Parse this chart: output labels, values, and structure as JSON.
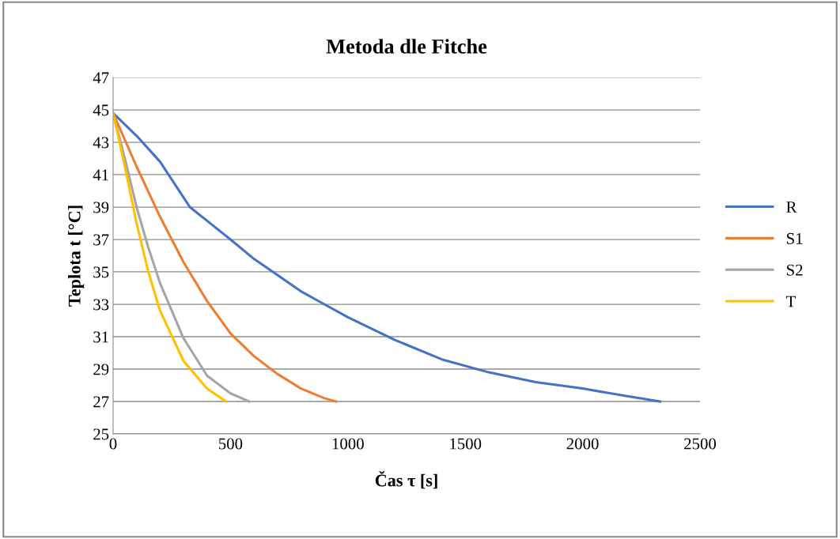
{
  "chart_data": {
    "type": "line",
    "title": "Metoda dle Fitche",
    "xlabel": "Čas τ [s]",
    "ylabel": "Teplota t [°C]",
    "xlim": [
      0,
      2500
    ],
    "xticks": [
      0,
      500,
      1000,
      1500,
      2000,
      2500
    ],
    "ylim": [
      25,
      47
    ],
    "yticks": [
      25,
      27,
      29,
      31,
      33,
      35,
      37,
      39,
      41,
      43,
      45,
      47
    ],
    "grid": "y",
    "legend": "right",
    "marker": "none",
    "line_style": "solid",
    "series": [
      {
        "name": "R",
        "color": "#4472c4",
        "x": [
          0,
          100,
          200,
          327,
          500,
          600,
          700,
          800,
          900,
          1000,
          1200,
          1400,
          1600,
          1800,
          2000,
          2200,
          2330
        ],
        "values": [
          44.8,
          43.4,
          41.8,
          39.0,
          37.0,
          35.8,
          34.8,
          33.8,
          33.0,
          32.2,
          30.8,
          29.6,
          28.8,
          28.2,
          27.8,
          27.3,
          27.0
        ]
      },
      {
        "name": "S1",
        "color": "#ed7d31",
        "x": [
          0,
          100,
          200,
          300,
          400,
          500,
          600,
          700,
          800,
          900,
          950
        ],
        "values": [
          44.8,
          41.5,
          38.4,
          35.6,
          33.2,
          31.2,
          29.8,
          28.7,
          27.8,
          27.2,
          27.0
        ]
      },
      {
        "name": "S2",
        "color": "#a5a5a5",
        "x": [
          0,
          50,
          100,
          150,
          200,
          300,
          400,
          500,
          580
        ],
        "values": [
          44.8,
          42.0,
          39.0,
          36.5,
          34.3,
          30.9,
          28.6,
          27.5,
          27.0
        ]
      },
      {
        "name": "T",
        "color": "#ffc000",
        "x": [
          0,
          50,
          100,
          150,
          200,
          300,
          400,
          480
        ],
        "values": [
          44.8,
          41.5,
          38.0,
          35.0,
          32.6,
          29.5,
          27.8,
          27.0
        ]
      }
    ]
  }
}
